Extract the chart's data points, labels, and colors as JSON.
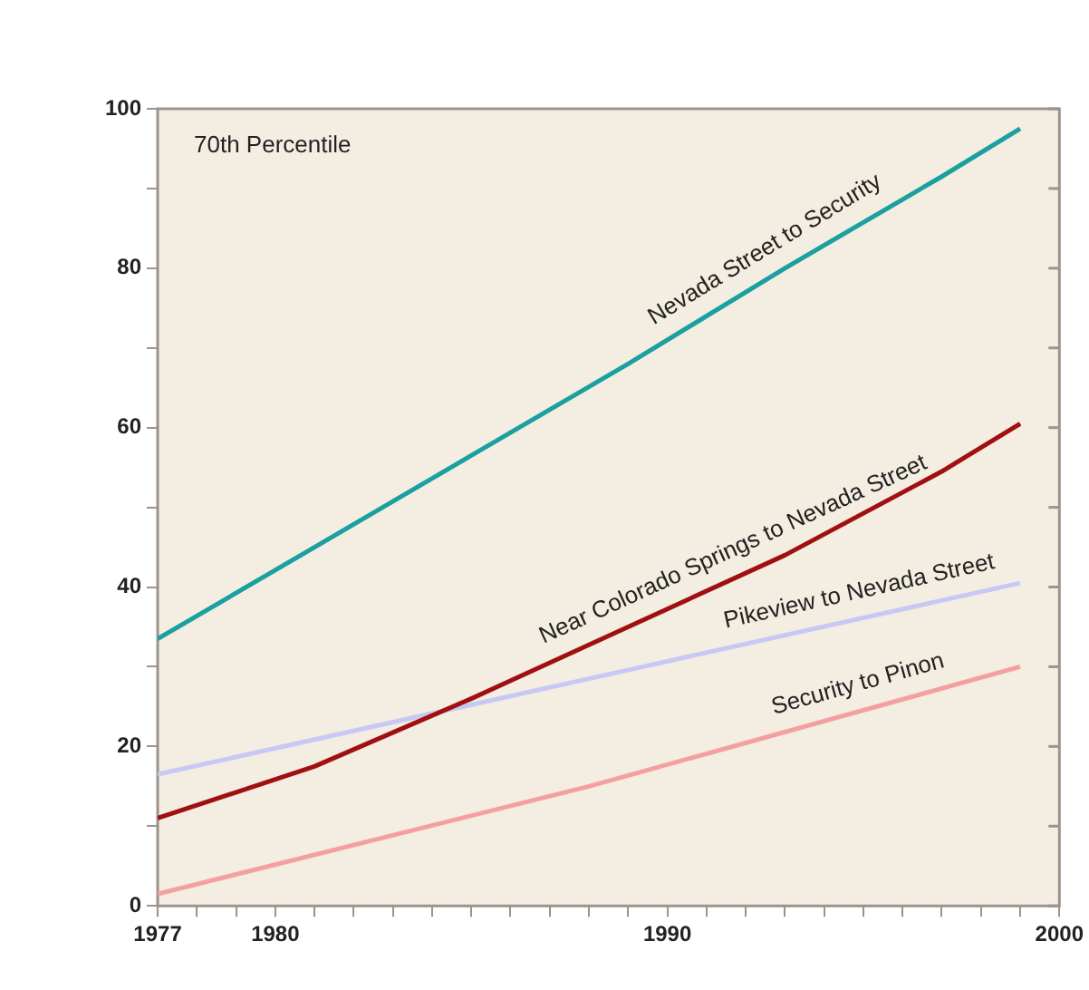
{
  "chart_data": {
    "type": "line",
    "annotations": [
      "70th Percentile"
    ],
    "xlim": [
      1977,
      2000
    ],
    "xticks": [
      1977,
      {
        "value": 1978,
        "label": null
      },
      {
        "value": 1979,
        "label": null
      },
      1980,
      {
        "value": 1981,
        "label": null
      },
      {
        "value": 1982,
        "label": null
      },
      {
        "value": 1983,
        "label": null
      },
      {
        "value": 1984,
        "label": null
      },
      {
        "value": 1985,
        "label": null
      },
      {
        "value": 1986,
        "label": null
      },
      {
        "value": 1987,
        "label": null
      },
      {
        "value": 1988,
        "label": null
      },
      {
        "value": 1989,
        "label": null
      },
      1990,
      {
        "value": 1991,
        "label": null
      },
      {
        "value": 1992,
        "label": null
      },
      {
        "value": 1993,
        "label": null
      },
      {
        "value": 1994,
        "label": null
      },
      {
        "value": 1995,
        "label": null
      },
      {
        "value": 1996,
        "label": null
      },
      {
        "value": 1997,
        "label": null
      },
      {
        "value": 1998,
        "label": null
      },
      {
        "value": 1999,
        "label": null
      },
      2000
    ],
    "ylim": [
      0,
      100
    ],
    "yticks": [
      0,
      {
        "value": 10,
        "label": null
      },
      20,
      {
        "value": 30,
        "label": null
      },
      40,
      {
        "value": 50,
        "label": null
      },
      60,
      {
        "value": 70,
        "label": null
      },
      80,
      {
        "value": 90,
        "label": null
      },
      100
    ],
    "grid": false,
    "legend": false,
    "marker": "none",
    "line_style": "solid",
    "series": [
      {
        "name": "Nevada Street to Security",
        "color": "#1aa0a0",
        "x": [
          1977,
          1981,
          1985,
          1989,
          1993,
          1997,
          1999
        ],
        "values": [
          33.5,
          45,
          56.5,
          68,
          80,
          91.5,
          97.5
        ]
      },
      {
        "name": "Near Colorado Springs to Nevada Street",
        "color": "#a01010",
        "x": [
          1977,
          1981,
          1985,
          1989,
          1993,
          1997,
          1999
        ],
        "values": [
          11,
          17.5,
          26,
          35,
          44,
          54.5,
          60.5
        ]
      },
      {
        "name": "Pikeview to Nevada Street",
        "color": "#c8c8f5",
        "x": [
          1977,
          1988,
          1999
        ],
        "values": [
          16.5,
          28.5,
          40.5
        ]
      },
      {
        "name": "Security to Pinon",
        "color": "#f4a0a0",
        "x": [
          1977,
          1988,
          1999
        ],
        "values": [
          1.5,
          15,
          30
        ]
      }
    ]
  }
}
